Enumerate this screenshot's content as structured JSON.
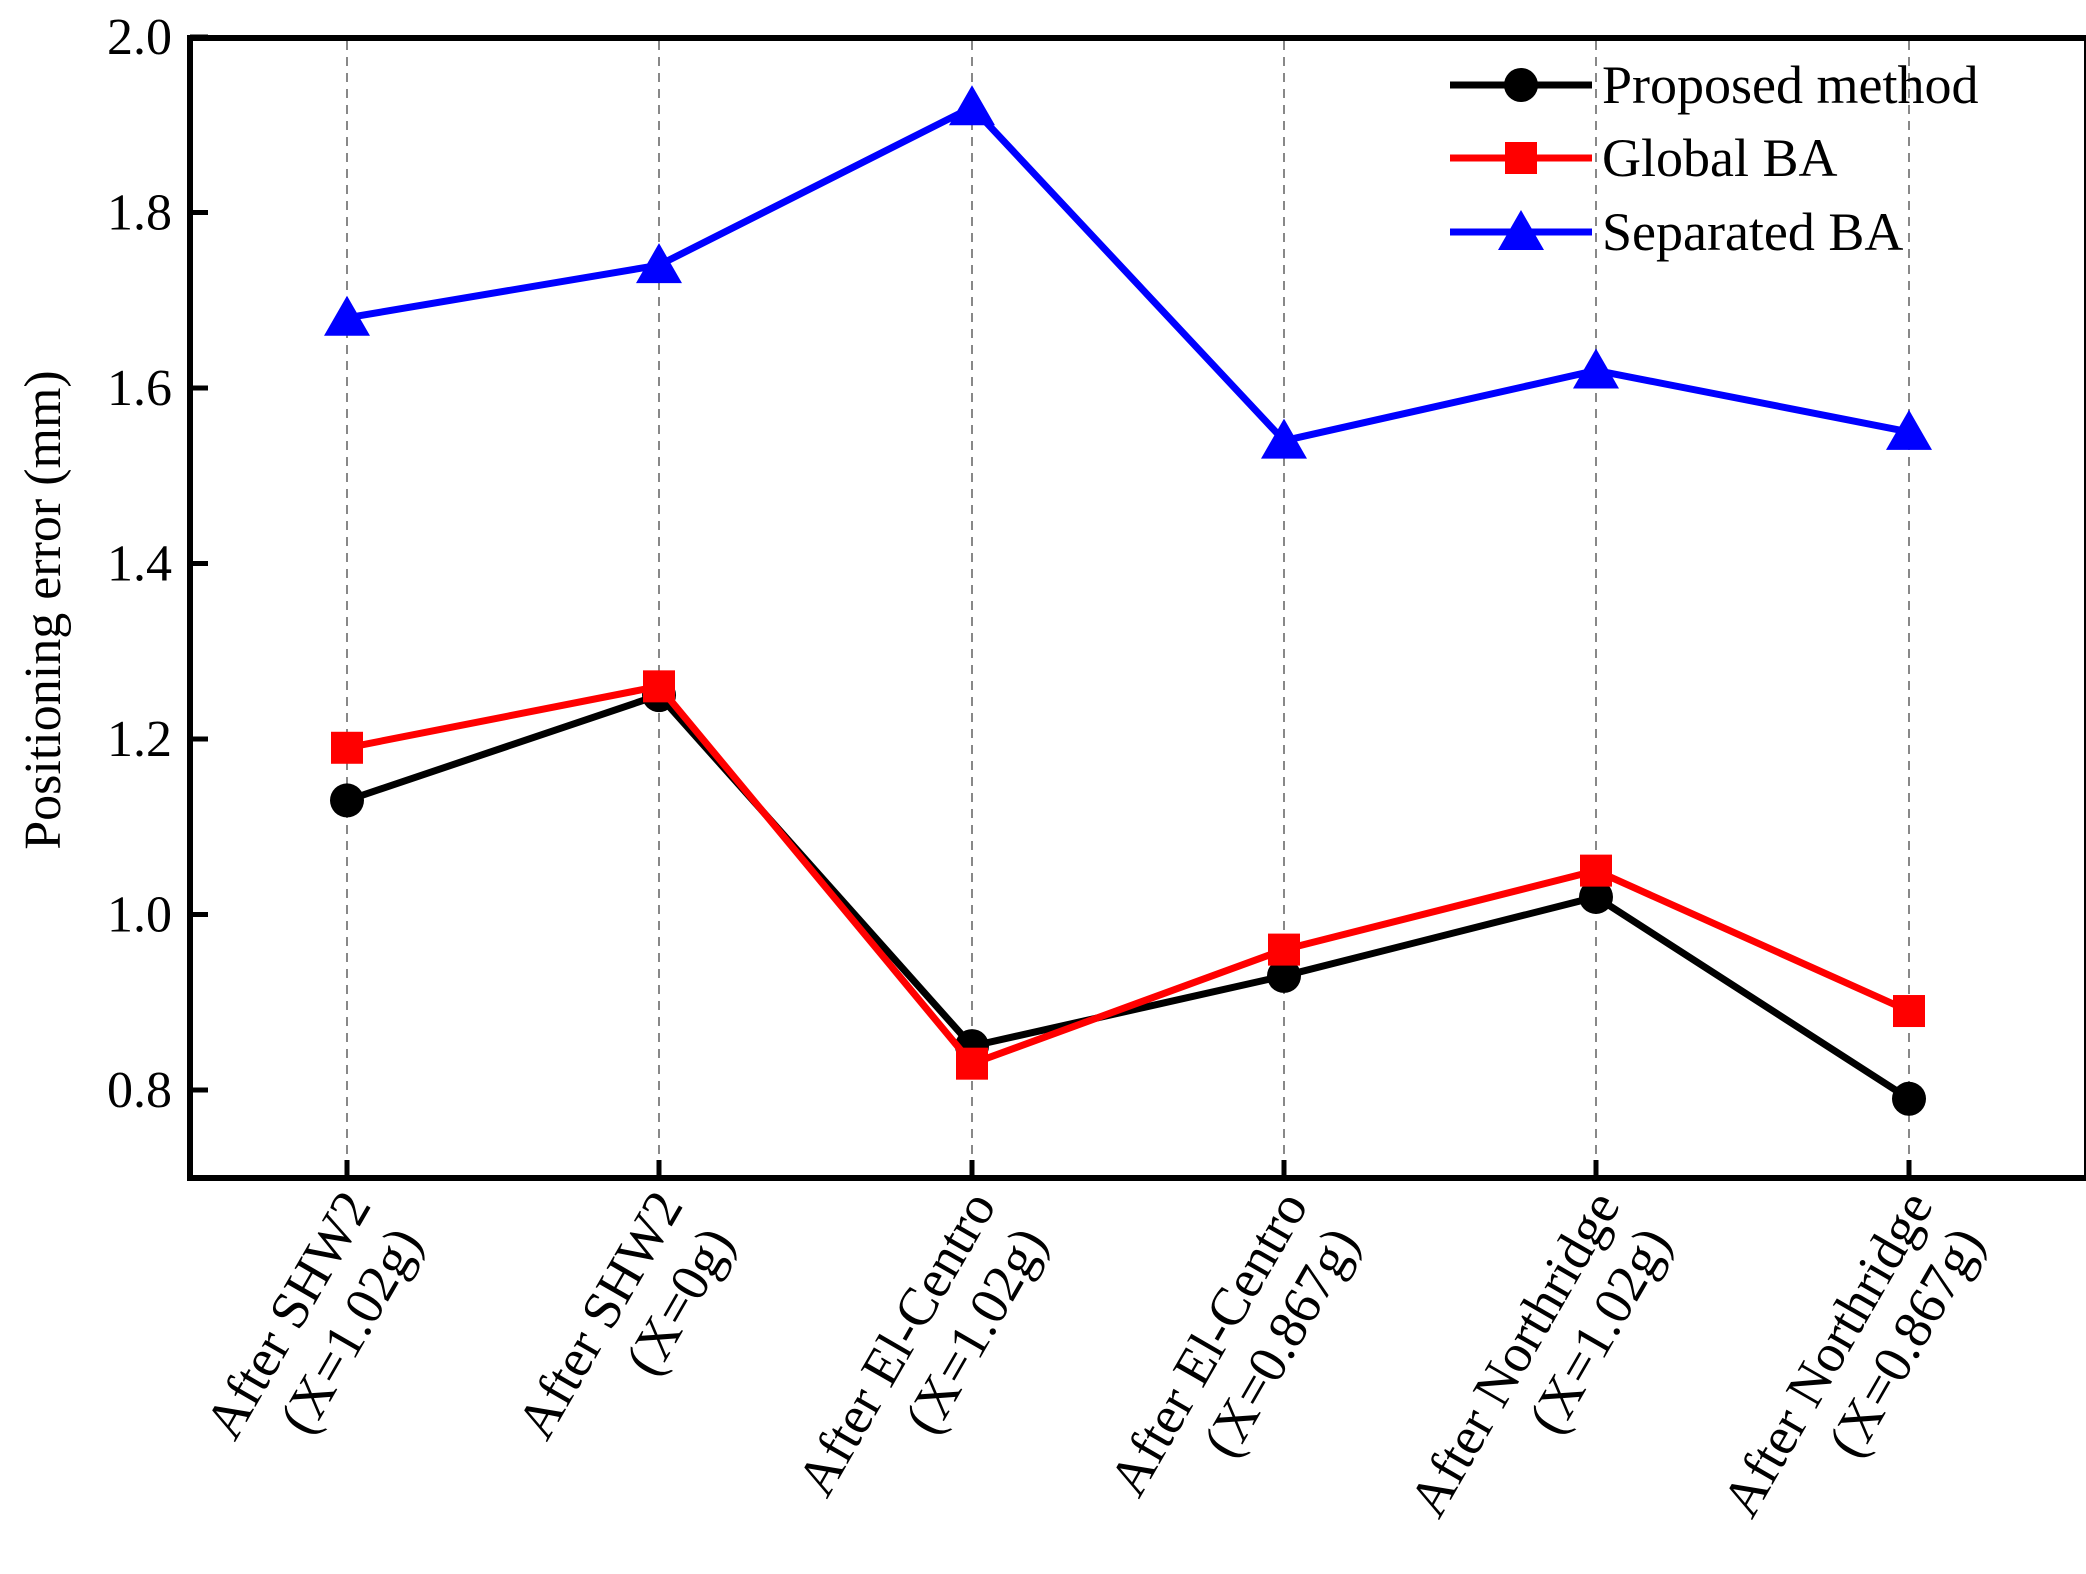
{
  "chart_data": {
    "type": "line",
    "title": "",
    "xlabel": "",
    "ylabel": "Positioning error  (mm)",
    "ylim": [
      0.7,
      2.0
    ],
    "yticks": [
      "0.8",
      "1.0",
      "1.2",
      "1.4",
      "1.6",
      "1.8",
      "2.0"
    ],
    "grid": "vertical dashed at categories",
    "legend_position": "top-right",
    "categories": [
      {
        "line1": "After SHW2",
        "line2": "(X=1.02g)"
      },
      {
        "line1": "After SHW2",
        "line2": "(X=0g)"
      },
      {
        "line1": "After El-Centro",
        "line2": "(X=1.02g)"
      },
      {
        "line1": "After El-Centro",
        "line2": "(X=0.867g)"
      },
      {
        "line1": "After Northridge",
        "line2": "(X=1.02g)"
      },
      {
        "line1": "After Northridge",
        "line2": "(X=0.867g)"
      }
    ],
    "series": [
      {
        "name": "Proposed method",
        "color": "#000000",
        "marker": "circle",
        "values": [
          1.13,
          1.25,
          0.85,
          0.93,
          1.02,
          0.79
        ]
      },
      {
        "name": "Global BA",
        "color": "#ff0000",
        "marker": "square",
        "values": [
          1.19,
          1.26,
          0.83,
          0.96,
          1.05,
          0.89
        ]
      },
      {
        "name": "Separated BA",
        "color": "#0000ff",
        "marker": "triangle",
        "values": [
          1.68,
          1.74,
          1.92,
          1.54,
          1.62,
          1.55
        ]
      }
    ]
  }
}
